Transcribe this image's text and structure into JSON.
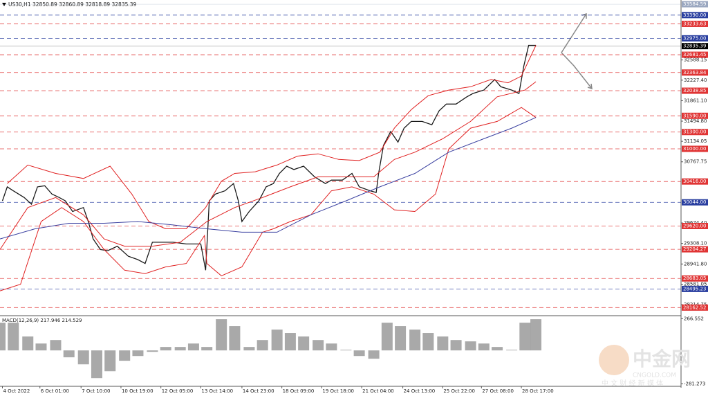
{
  "header": {
    "symbol": "US30,H1",
    "ohlc": "32850.89 32860.89 32818.89 32835.39"
  },
  "watermark": {
    "brand": "中金网",
    "site": "CNGOLD.COM",
    "tagline": "中 文 财 经 新 媒 体"
  },
  "chart_data": [
    {
      "type": "line",
      "xlim": [
        0,
        563
      ],
      "ylim": [
        28030,
        33660
      ],
      "xticks": [
        {
          "value": 2,
          "label": "4 Oct 2022"
        },
        {
          "value": 33,
          "label": "6 Oct 01:00"
        },
        {
          "value": 67,
          "label": "7 Oct 10:00"
        },
        {
          "value": 100,
          "label": "10 Oct 19:00"
        },
        {
          "value": 133,
          "label": "12 Oct 05:00"
        },
        {
          "value": 166,
          "label": "13 Oct 14:00"
        },
        {
          "value": 200,
          "label": "14 Oct 23:00"
        },
        {
          "value": 233,
          "label": "18 Oct 09:00"
        },
        {
          "value": 266,
          "label": "19 Oct 18:00"
        },
        {
          "value": 299,
          "label": "21 Oct 04:00"
        },
        {
          "value": 333,
          "label": "24 Oct 13:00"
        },
        {
          "value": 366,
          "label": "25 Oct 22:00"
        },
        {
          "value": 398,
          "label": "27 Oct 08:00"
        },
        {
          "value": 431,
          "label": "28 Oct 17:00"
        }
      ],
      "yticks": [
        {
          "value": 32588.15,
          "label": "32588.15"
        },
        {
          "value": 32227.4,
          "label": "32227.40"
        },
        {
          "value": 31861.1,
          "label": "31861.10"
        },
        {
          "value": 31494.8,
          "label": "31494.80"
        },
        {
          "value": 31134.05,
          "label": "31134.05"
        },
        {
          "value": 30767.75,
          "label": "30767.75"
        },
        {
          "value": 29674.4,
          "label": "29674.40"
        },
        {
          "value": 29308.1,
          "label": "29308.10"
        },
        {
          "value": 28941.8,
          "label": "28941.80"
        },
        {
          "value": 28581.05,
          "label": "28581.05"
        },
        {
          "value": 28214.75,
          "label": "28214.75"
        }
      ],
      "levels": [
        {
          "value": 33584.59,
          "label": "33584.59",
          "color": "#9aa7c0",
          "dash": false
        },
        {
          "value": 33390,
          "label": "33390.00",
          "color": "#2a3fa0",
          "dash": true
        },
        {
          "value": 33233.63,
          "label": "33233.63",
          "color": "#e03434",
          "dash": true
        },
        {
          "value": 32975,
          "label": "32975.00",
          "color": "#2a3fa0",
          "dash": true
        },
        {
          "value": 32835.39,
          "label": "32835.39",
          "color": "#000000",
          "dash": false
        },
        {
          "value": 32681.45,
          "label": "32681.45",
          "color": "#e03434",
          "dash": true
        },
        {
          "value": 32363.84,
          "label": "32363.84",
          "color": "#e03434",
          "dash": true
        },
        {
          "value": 32038.85,
          "label": "32038.85",
          "color": "#e03434",
          "dash": true
        },
        {
          "value": 31590,
          "label": "31590.00",
          "color": "#e03434",
          "dash": true
        },
        {
          "value": 31300,
          "label": "31300.00",
          "color": "#e03434",
          "dash": true
        },
        {
          "value": 31000,
          "label": "31000.00",
          "color": "#e03434",
          "dash": true
        },
        {
          "value": 30416,
          "label": "30416.00",
          "color": "#e03434",
          "dash": true
        },
        {
          "value": 30044,
          "label": "30044.00",
          "color": "#2a3fa0",
          "dash": true
        },
        {
          "value": 29620,
          "label": "29620.00",
          "color": "#e03434",
          "dash": true
        },
        {
          "value": 29204.27,
          "label": "29204.27",
          "color": "#e03434",
          "dash": true
        },
        {
          "value": 28683.05,
          "label": "28683.05",
          "color": "#e03434",
          "dash": true
        },
        {
          "value": 28495.23,
          "label": "28495.23",
          "color": "#2a3fa0",
          "dash": true
        },
        {
          "value": 28162.52,
          "label": "28162.52",
          "color": "#e03434",
          "dash": true
        }
      ],
      "series": [
        {
          "color": "#1a1a1a",
          "x": [
            2,
            6,
            11,
            20,
            26,
            31,
            37,
            43,
            49,
            54,
            60,
            69,
            73,
            77,
            83,
            89,
            97,
            106,
            114,
            120,
            126,
            134,
            143,
            154,
            166,
            170,
            173,
            178,
            186,
            193,
            197,
            200,
            206,
            214,
            220,
            226,
            231,
            237,
            243,
            251,
            260,
            269,
            274,
            283,
            291,
            297,
            306,
            311,
            313,
            317,
            323,
            329,
            334,
            340,
            349,
            357,
            363,
            369,
            377,
            386,
            391,
            400,
            409,
            414,
            423,
            429,
            433,
            437,
            443
          ],
          "values": [
            30070,
            30320,
            30250,
            30130,
            30010,
            30320,
            30340,
            30190,
            30130,
            30070,
            29880,
            29950,
            29700,
            29390,
            29200,
            29180,
            29260,
            29080,
            29020,
            28950,
            29330,
            29330,
            29330,
            29300,
            29300,
            28830,
            30070,
            30190,
            30250,
            30380,
            30070,
            29700,
            29880,
            30070,
            30320,
            30380,
            30560,
            30690,
            30630,
            30690,
            30500,
            30380,
            30440,
            30440,
            30560,
            30320,
            30250,
            30220,
            30560,
            31060,
            31310,
            31120,
            31370,
            31490,
            31490,
            31430,
            31680,
            31800,
            31800,
            31930,
            31990,
            32050,
            32240,
            32110,
            32050,
            31990,
            32480,
            32850,
            32850
          ]
        },
        {
          "color": "#e02020",
          "x": [
            6,
            23,
            46,
            69,
            91,
            109,
            123,
            137,
            154,
            170,
            183,
            194,
            211,
            229,
            246,
            263,
            280,
            297,
            314,
            326,
            340,
            354,
            371,
            389,
            406,
            420,
            431,
            443
          ],
          "values": [
            30380,
            30710,
            30560,
            30470,
            30690,
            30190,
            29700,
            29570,
            29570,
            29950,
            30420,
            30560,
            30590,
            30710,
            30870,
            30910,
            30810,
            30790,
            30940,
            31370,
            31700,
            31950,
            32050,
            32110,
            32240,
            32180,
            32300,
            32850
          ]
        },
        {
          "color": "#e02020",
          "x": [
            0,
            23,
            46,
            69,
            86,
            103,
            126,
            149,
            171,
            194,
            217,
            240,
            263,
            286,
            309,
            326,
            343,
            366,
            389,
            411,
            434,
            443
          ],
          "values": [
            29200,
            29950,
            30130,
            29820,
            29390,
            29260,
            29260,
            29330,
            29700,
            29950,
            30130,
            30320,
            30500,
            30500,
            30500,
            30810,
            30940,
            31180,
            31490,
            31930,
            32050,
            32200
          ]
        },
        {
          "color": "#e02020",
          "x": [
            0,
            17,
            34,
            51,
            69,
            86,
            103,
            120,
            137,
            154,
            169,
            171,
            183,
            200,
            217,
            226,
            240,
            257,
            274,
            291,
            309,
            326,
            343,
            360,
            371,
            389,
            411,
            431,
            443
          ],
          "values": [
            28460,
            28580,
            29700,
            29950,
            29700,
            29200,
            28830,
            28770,
            28890,
            28950,
            29450,
            28950,
            28730,
            28890,
            29510,
            29570,
            29700,
            29820,
            30250,
            30320,
            30190,
            29910,
            29880,
            30190,
            31000,
            31370,
            31490,
            31740,
            31560
          ]
        },
        {
          "color": "#3a40a0",
          "x": [
            0,
            29,
            57,
            86,
            114,
            143,
            171,
            200,
            229,
            257,
            286,
            314,
            343,
            371,
            400,
            423,
            443
          ],
          "values": [
            29390,
            29570,
            29670,
            29670,
            29700,
            29640,
            29570,
            29510,
            29510,
            29820,
            30070,
            30320,
            30560,
            30940,
            31180,
            31370,
            31560
          ]
        }
      ]
    },
    {
      "type": "bar",
      "title": "MACD(12,26,9) 217.946 214.529",
      "color": "#8c8c8c",
      "xlim": [
        0,
        563
      ],
      "ylim": [
        -290,
        280
      ],
      "yticks": [
        266.552,
        -281.273
      ],
      "x": [
        0,
        11,
        23,
        34,
        46,
        57,
        69,
        80,
        91,
        103,
        114,
        126,
        137,
        149,
        160,
        171,
        183,
        194,
        206,
        217,
        229,
        240,
        251,
        263,
        274,
        286,
        297,
        309,
        320,
        331,
        343,
        354,
        366,
        377,
        389,
        400,
        411,
        423,
        434,
        443
      ],
      "values": [
        233,
        233,
        117,
        58,
        87,
        -58,
        -117,
        -233,
        -175,
        -87,
        -47,
        -12,
        29,
        29,
        58,
        29,
        262,
        204,
        29,
        87,
        175,
        146,
        117,
        87,
        58,
        5,
        -47,
        -70,
        233,
        204,
        175,
        146,
        117,
        87,
        76,
        58,
        29,
        5,
        233,
        262
      ]
    }
  ]
}
